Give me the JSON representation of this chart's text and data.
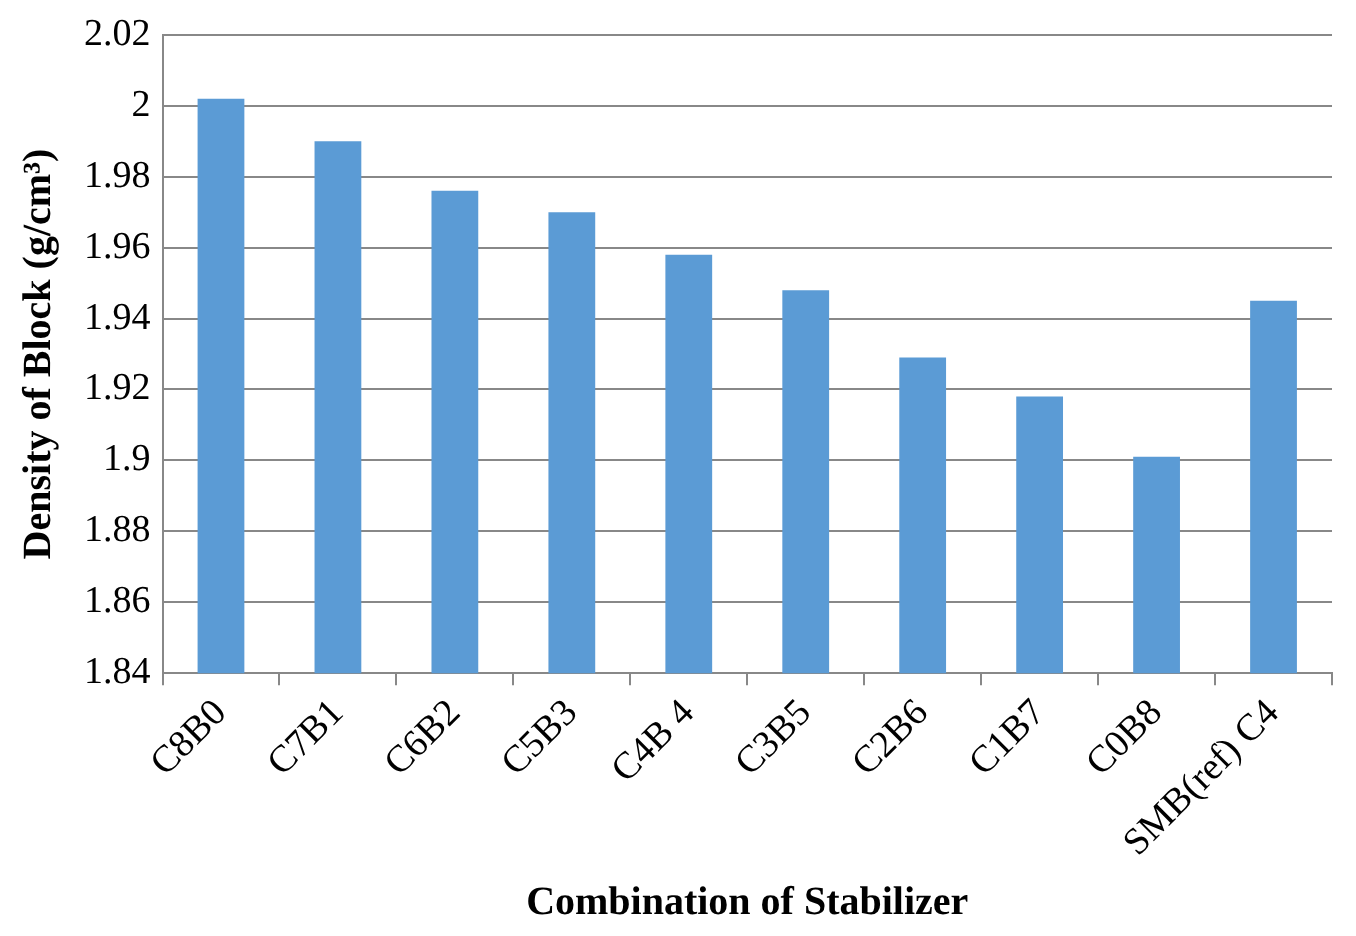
{
  "chart_data": {
    "type": "bar",
    "xlabel": "Combination of Stabilizer",
    "ylabel": "Density of Block (g/cm³)",
    "categories": [
      "C8B0",
      "C7B1",
      "C6B2",
      "C5B3",
      "C4B 4",
      "C3B5",
      "C2B6",
      "C1B7",
      "C0B8",
      "SMB(ref) C4"
    ],
    "values": [
      2.002,
      1.99,
      1.976,
      1.97,
      1.958,
      1.948,
      1.929,
      1.918,
      1.901,
      1.945
    ],
    "color": "#5b9bd5",
    "ylim": [
      1.84,
      2.02
    ],
    "yticks": [
      1.84,
      1.86,
      1.88,
      1.9,
      1.92,
      1.94,
      1.96,
      1.98,
      2,
      2.02
    ],
    "grid": "y"
  }
}
